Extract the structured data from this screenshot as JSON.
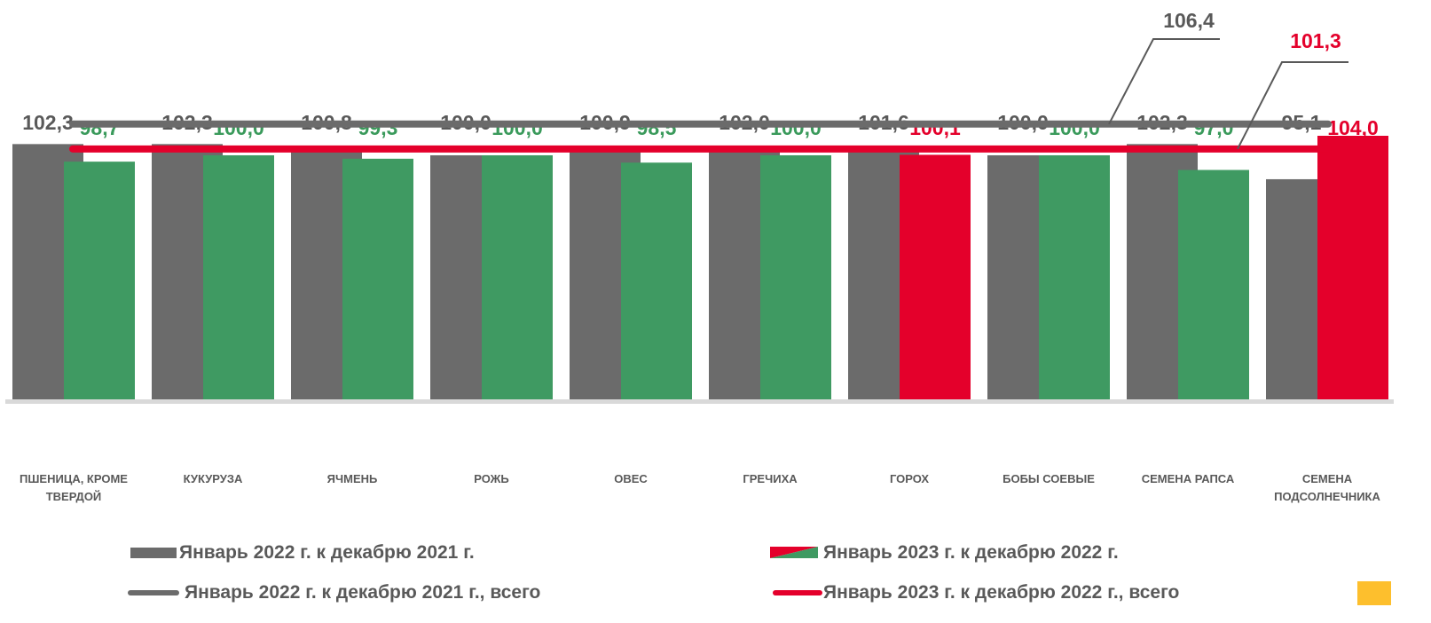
{
  "chart_data": {
    "type": "bar",
    "categories": [
      "ПШЕНИЦА, КРОМЕ ТВЕРДОЙ",
      "КУКУРУЗА",
      "ЯЧМЕНЬ",
      "РОЖЬ",
      "ОВЕС",
      "ГРЕЧИХА",
      "ГОРОХ",
      "БОБЫ СОЕВЫЕ",
      "СЕМЕНА РАПСА",
      "СЕМЕНА ПОДСОЛНЕЧНИКА"
    ],
    "series": [
      {
        "name": "Январь 2022 г. к декабрю 2021 г.",
        "color": "#6b6b6b",
        "label_color": "#595959",
        "values": [
          102.3,
          102.3,
          100.8,
          100.0,
          100.9,
          102.0,
          101.6,
          100.0,
          102.3,
          95.1
        ],
        "value_labels": [
          "102,3",
          "102,3",
          "100,8",
          "100,0",
          "100,9",
          "102,0",
          "101,6",
          "100,0",
          "102,3",
          "95,1"
        ]
      },
      {
        "name": "Январь 2023 г. к декабрю 2022 г.",
        "colors": [
          "#3f9a62",
          "#3f9a62",
          "#3f9a62",
          "#3f9a62",
          "#3f9a62",
          "#3f9a62",
          "#e4002b",
          "#3f9a62",
          "#3f9a62",
          "#e4002b"
        ],
        "label_colors": [
          "#3a9a5b",
          "#3a9a5b",
          "#3a9a5b",
          "#3a9a5b",
          "#3a9a5b",
          "#3a9a5b",
          "#e4002b",
          "#3a9a5b",
          "#3a9a5b",
          "#e4002b"
        ],
        "values": [
          98.7,
          100.0,
          99.3,
          100.0,
          98.5,
          100.0,
          100.1,
          100.0,
          97.0,
          104.0
        ],
        "value_labels": [
          "98,7",
          "100,0",
          "99,3",
          "100,0",
          "98,5",
          "100,0",
          "100,1",
          "100,0",
          "97,0",
          "104,0"
        ]
      }
    ],
    "totals": [
      {
        "name": "Январь 2022 г. к декабрю 2021 г., всего",
        "value": 106.4,
        "value_label": "106,4",
        "color": "#6b6b6b",
        "label_color": "#595959"
      },
      {
        "name": "Январь 2023 г. к декабрю 2022 г., всего",
        "value": 101.3,
        "value_label": "101,3",
        "color": "#e4002b",
        "label_color": "#e4002b"
      }
    ],
    "ylim": [
      50,
      130
    ]
  }
}
